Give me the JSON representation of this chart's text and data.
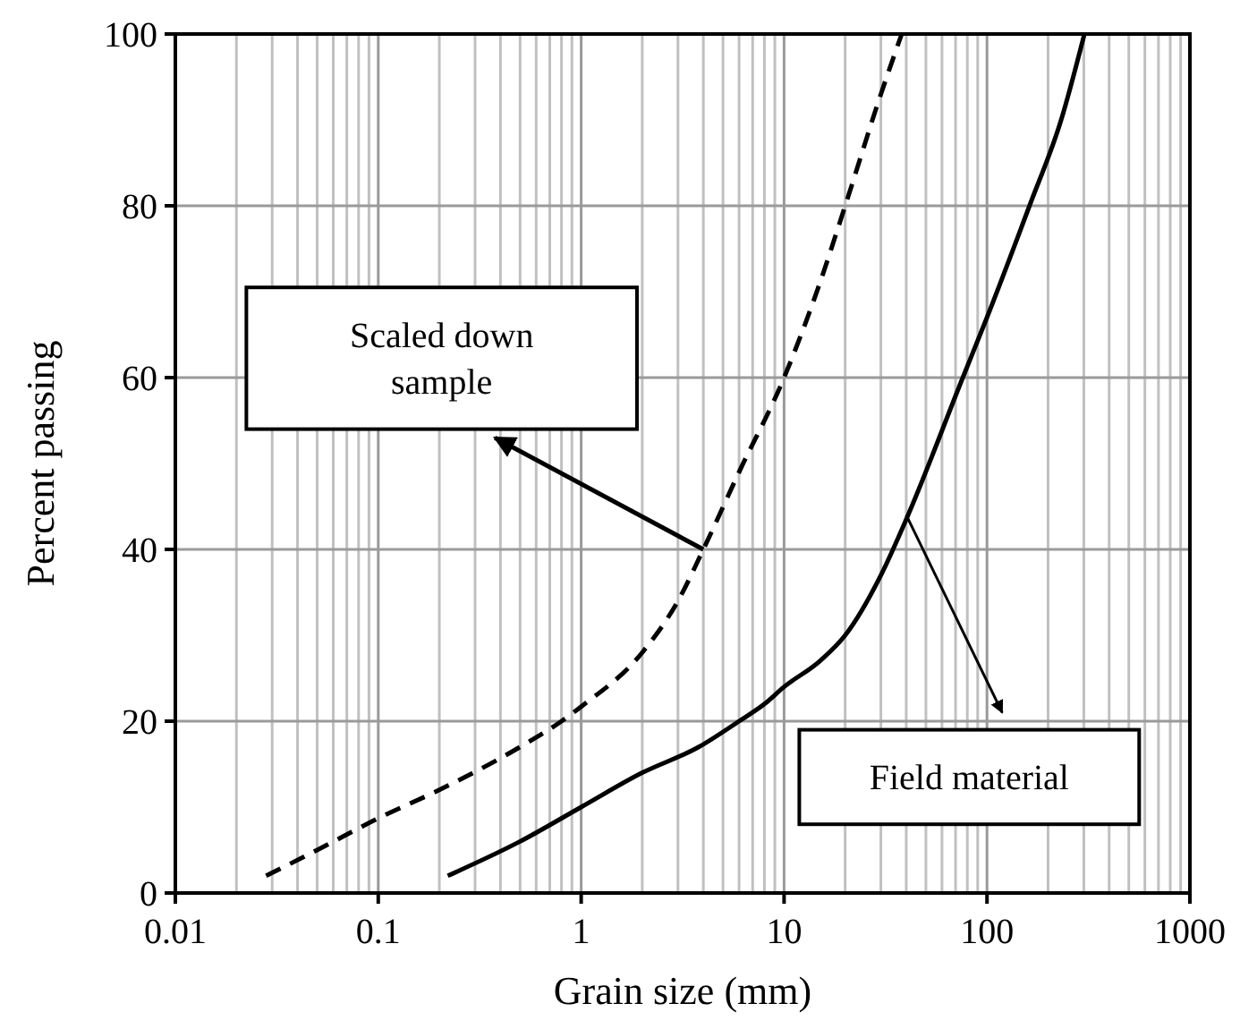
{
  "chart_data": {
    "type": "line",
    "xlabel": "Grain size (mm)",
    "ylabel": "Percent passing",
    "log": "x",
    "grid": true,
    "xlim": [
      0.01,
      1000
    ],
    "xticks": [
      0.01,
      0.1,
      1,
      10,
      100,
      1000
    ],
    "ylim": [
      0,
      100
    ],
    "yticks": [
      0,
      20,
      40,
      60,
      80,
      100
    ],
    "series": [
      {
        "color": "#000000",
        "line_style": "dashed",
        "x": [
          0.028,
          0.05,
          0.1,
          0.2,
          0.5,
          0.8,
          1,
          2,
          3,
          4,
          6,
          10,
          15,
          20,
          30,
          38
        ],
        "values": [
          2,
          5,
          8.7,
          12,
          17,
          20,
          21.7,
          28,
          34,
          40,
          49,
          60,
          71,
          80,
          93,
          100
        ]
      },
      {
        "color": "#000000",
        "line_style": "solid",
        "x": [
          0.22,
          0.5,
          1,
          2,
          3.8,
          6,
          8,
          10,
          15,
          20,
          30,
          40,
          76,
          100,
          162,
          232,
          302
        ],
        "values": [
          2,
          6,
          10,
          14,
          17,
          20,
          22,
          24,
          27,
          30,
          37,
          43.5,
          60,
          67,
          80,
          90,
          100
        ]
      }
    ],
    "annotations": [
      {
        "text": "Scaled down sample",
        "x": 4,
        "y": 40
      },
      {
        "text": "Field material",
        "x": 40,
        "y": 44
      }
    ]
  }
}
